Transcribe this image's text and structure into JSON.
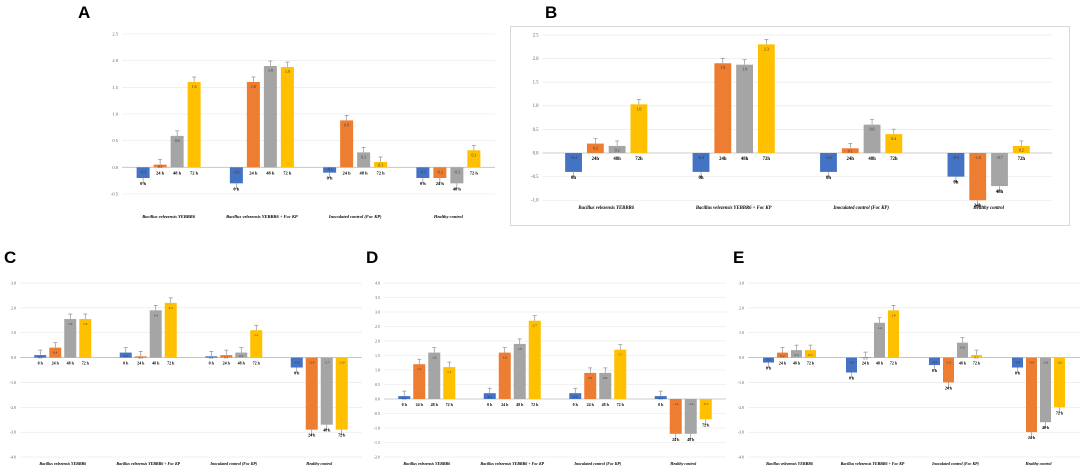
{
  "colors": {
    "0h": "#4472c4",
    "24h": "#ed7d31",
    "48h": "#a5a5a5",
    "72h": "#ffc000"
  },
  "chart_data": [
    {
      "panel": "A",
      "type": "bar",
      "ylim": [
        -0.5,
        2.5
      ],
      "yticks": [
        "2.5",
        "2.0",
        "1.5",
        "1.0",
        "0.5",
        "0.0",
        "-0.5"
      ],
      "categories": [
        "Bacillus velezensis YEBBR6",
        "Bacillus velezensis YEBBR6 + Foc KP",
        "Inoculated control (Foc KP)",
        "Healthy control"
      ],
      "bars": [
        [
          {
            "v": -0.2,
            "lbl": "-0.2",
            "t": "0 h"
          },
          {
            "v": 0.05,
            "lbl": "0.1",
            "t": "24 h"
          },
          {
            "v": 0.59,
            "lbl": "0.6",
            "t": "48 h"
          },
          {
            "v": 1.6,
            "lbl": "1.6",
            "t": "72 h"
          }
        ],
        [
          {
            "v": -0.3,
            "lbl": "-0.3",
            "t": "0 h"
          },
          {
            "v": 1.6,
            "lbl": "1.6",
            "t": "24 h"
          },
          {
            "v": 1.9,
            "lbl": "1.9",
            "t": "48 h"
          },
          {
            "v": 1.88,
            "lbl": "1.9",
            "t": "72 h"
          }
        ],
        [
          {
            "v": -0.1,
            "lbl": "-0.1",
            "t": "0 h"
          },
          {
            "v": 0.88,
            "lbl": "0.9",
            "t": "24 h"
          },
          {
            "v": 0.28,
            "lbl": "0.3",
            "t": "48 h"
          },
          {
            "v": 0.1,
            "lbl": "0.1",
            "t": "72 h"
          }
        ],
        [
          {
            "v": -0.2,
            "lbl": "-0.2",
            "t": "0 h"
          },
          {
            "v": -0.2,
            "lbl": "-0.2",
            "t": "24 h"
          },
          {
            "v": -0.3,
            "lbl": "-0.3",
            "t": "48 h"
          },
          {
            "v": 0.32,
            "lbl": "0.3",
            "t": "72 h"
          }
        ]
      ]
    },
    {
      "panel": "B",
      "type": "bar",
      "ylim": [
        -1.0,
        2.5
      ],
      "yticks": [
        "2.5",
        "2.0",
        "1.5",
        "1.0",
        "0.5",
        "0.0",
        "-0.5",
        "-1.0"
      ],
      "categories": [
        "Bacillus velezensis YEBBR6",
        "Bacillus velezensis YEBBR6 + Foc KP",
        "Inoculated control (Foc KP)",
        "Healthy control"
      ],
      "bars": [
        [
          {
            "v": -0.4,
            "lbl": "-0.4",
            "t": "0h"
          },
          {
            "v": 0.2,
            "lbl": "0.2",
            "t": "24h"
          },
          {
            "v": 0.15,
            "lbl": "0.2",
            "t": "48h"
          },
          {
            "v": 1.03,
            "lbl": "1.0",
            "t": "72h"
          }
        ],
        [
          {
            "v": -0.4,
            "lbl": "-0.4",
            "t": "0h"
          },
          {
            "v": 1.9,
            "lbl": "1.9",
            "t": "24h"
          },
          {
            "v": 1.87,
            "lbl": "1.9",
            "t": "48h"
          },
          {
            "v": 2.3,
            "lbl": "2.3",
            "t": "72h"
          }
        ],
        [
          {
            "v": -0.4,
            "lbl": "-0.4",
            "t": "0h"
          },
          {
            "v": 0.1,
            "lbl": "0.1",
            "t": "24h"
          },
          {
            "v": 0.6,
            "lbl": "0.6",
            "t": "48h"
          },
          {
            "v": 0.4,
            "lbl": "0.4",
            "t": "72h"
          }
        ],
        [
          {
            "v": -0.5,
            "lbl": "-0.5",
            "t": "0h"
          },
          {
            "v": -1.0,
            "lbl": "-1.0",
            "t": "24h"
          },
          {
            "v": -0.7,
            "lbl": "-0.7",
            "t": "48h"
          },
          {
            "v": 0.15,
            "lbl": "0.2",
            "t": "72h"
          }
        ]
      ]
    },
    {
      "panel": "C",
      "type": "bar",
      "ylim": [
        -4.0,
        3.0
      ],
      "yticks": [
        "3.0",
        "2.0",
        "1.0",
        "0.0",
        "-1.0",
        "-2.0",
        "-3.0",
        "-4.0"
      ],
      "categories": [
        "Bacillus velezensis YEBBR6",
        "Bacillus velezensis YEBBR6 + Foc KP",
        "Inoculated control (Foc KP)",
        "Healthy control"
      ],
      "bars": [
        [
          {
            "v": 0.1,
            "lbl": "0.1",
            "t": "0 h"
          },
          {
            "v": 0.4,
            "lbl": "0.4",
            "t": "24 h"
          },
          {
            "v": 1.55,
            "lbl": "1.6",
            "t": "48 h"
          },
          {
            "v": 1.55,
            "lbl": "1.6",
            "t": "72 h"
          }
        ],
        [
          {
            "v": 0.2,
            "lbl": "0.2",
            "t": "0 h"
          },
          {
            "v": 0.05,
            "lbl": "0.1",
            "t": "24 h"
          },
          {
            "v": 1.9,
            "lbl": "1.9",
            "t": "48 h"
          },
          {
            "v": 2.2,
            "lbl": "2.2",
            "t": "72 h"
          }
        ],
        [
          {
            "v": 0.05,
            "lbl": "0.1",
            "t": "0 h"
          },
          {
            "v": 0.1,
            "lbl": "0.1",
            "t": "24 h"
          },
          {
            "v": 0.2,
            "lbl": "0.2",
            "t": "48 h"
          },
          {
            "v": 1.1,
            "lbl": "1.1",
            "t": "72 h"
          }
        ],
        [
          {
            "v": -0.4,
            "lbl": "-0.4",
            "t": "0 h"
          },
          {
            "v": -2.9,
            "lbl": "-2.9",
            "t": "24 h"
          },
          {
            "v": -2.7,
            "lbl": "-2.7",
            "t": "48 h"
          },
          {
            "v": -2.9,
            "lbl": "-2.9",
            "t": "72 h"
          }
        ]
      ]
    },
    {
      "panel": "D",
      "type": "bar",
      "ylim": [
        -2.0,
        4.0
      ],
      "yticks": [
        "4.0",
        "3.5",
        "3.0",
        "2.5",
        "2.0",
        "1.5",
        "1.0",
        "0.5",
        "0.0",
        "-0.5",
        "-1.0",
        "-1.5",
        "-2.0"
      ],
      "categories": [
        "Bacillus velezensis YEBBR6",
        "Bacillus velezensis YEBBR6 + Foc KP",
        "Inoculated control (Foc KP)",
        "Healthy control"
      ],
      "bars": [
        [
          {
            "v": 0.1,
            "lbl": "0.1",
            "t": "0 h"
          },
          {
            "v": 1.2,
            "lbl": "1.2",
            "t": "24 h"
          },
          {
            "v": 1.6,
            "lbl": "1.6",
            "t": "48 h"
          },
          {
            "v": 1.1,
            "lbl": "1.1",
            "t": "72 h"
          }
        ],
        [
          {
            "v": 0.2,
            "lbl": "0.2",
            "t": "0 h"
          },
          {
            "v": 1.6,
            "lbl": "1.6",
            "t": "24 h"
          },
          {
            "v": 1.9,
            "lbl": "1.9",
            "t": "48 h"
          },
          {
            "v": 2.7,
            "lbl": "2.7",
            "t": "72 h"
          }
        ],
        [
          {
            "v": 0.2,
            "lbl": "0.2",
            "t": "0 h"
          },
          {
            "v": 0.9,
            "lbl": "0.9",
            "t": "24 h"
          },
          {
            "v": 0.9,
            "lbl": "0.9",
            "t": "48 h"
          },
          {
            "v": 1.7,
            "lbl": "1.7",
            "t": "72 h"
          }
        ],
        [
          {
            "v": 0.1,
            "lbl": "0.1",
            "t": "0 h"
          },
          {
            "v": -1.2,
            "lbl": "-1.2",
            "t": "24 h"
          },
          {
            "v": -1.2,
            "lbl": "-1.2",
            "t": "48 h"
          },
          {
            "v": -0.7,
            "lbl": "-0.7",
            "t": "72 h"
          }
        ]
      ]
    },
    {
      "panel": "E",
      "type": "bar",
      "ylim": [
        -4.0,
        3.0
      ],
      "yticks": [
        "3.0",
        "2.0",
        "1.0",
        "0.0",
        "-1.0",
        "-2.0",
        "-3.0",
        "-4.0"
      ],
      "categories": [
        "Bacillus velezensis YEBBR6",
        "Bacillus velezensis YEBBR6 + Foc KP",
        "Inoculated control (Foc KP)",
        "Healthy control"
      ],
      "bars": [
        [
          {
            "v": -0.2,
            "lbl": "-0.2",
            "t": "0 h"
          },
          {
            "v": 0.2,
            "lbl": "0.2",
            "t": "24 h"
          },
          {
            "v": 0.3,
            "lbl": "0.3",
            "t": "48 h"
          },
          {
            "v": 0.3,
            "lbl": "0.3",
            "t": "72 h"
          }
        ],
        [
          {
            "v": -0.6,
            "lbl": "-0.6",
            "t": "0 h"
          },
          {
            "v": 0.02,
            "lbl": "0.0",
            "t": "24 h"
          },
          {
            "v": 1.4,
            "lbl": "1.4",
            "t": "48 h"
          },
          {
            "v": 1.9,
            "lbl": "1.9",
            "t": "72 h"
          }
        ],
        [
          {
            "v": -0.3,
            "lbl": "-0.3",
            "t": "0 h"
          },
          {
            "v": -1.0,
            "lbl": "-1.0",
            "t": "24 h"
          },
          {
            "v": 0.6,
            "lbl": "0.6",
            "t": "48 h"
          },
          {
            "v": 0.1,
            "lbl": "0.1",
            "t": "72 h"
          }
        ],
        [
          {
            "v": -0.4,
            "lbl": "-0.4",
            "t": "0 h"
          },
          {
            "v": -3.0,
            "lbl": "-3.0",
            "t": "24 h"
          },
          {
            "v": -2.6,
            "lbl": "-2.6",
            "t": "48 h"
          },
          {
            "v": -2.0,
            "lbl": "-2.0",
            "t": "72 h"
          }
        ]
      ]
    }
  ]
}
